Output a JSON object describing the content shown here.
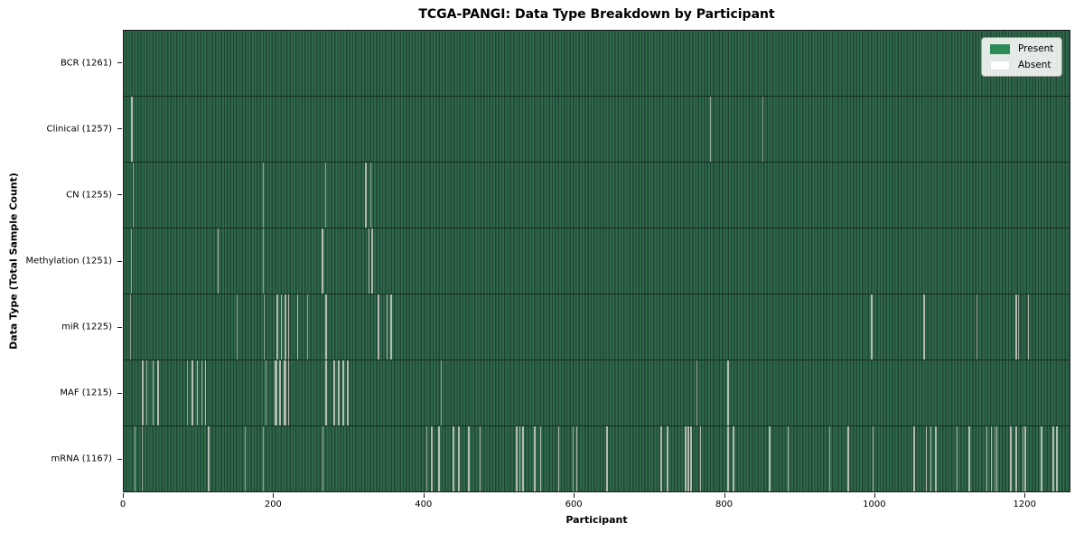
{
  "chart_data": {
    "type": "heatmap",
    "title": "TCGA-PANGI: Data Type Breakdown by Participant",
    "xlabel": "Participant",
    "ylabel": "Data Type (Total Sample Count)",
    "x_ticks": [
      0,
      200,
      400,
      600,
      800,
      1000,
      1200
    ],
    "x_range": [
      0,
      1261
    ],
    "total_participants": 1261,
    "grid": false,
    "legend_position": "upper right",
    "legend": [
      {
        "label": "Present",
        "color": "#2e8b57"
      },
      {
        "label": "Absent",
        "color": "#ffffff"
      }
    ],
    "rows": [
      {
        "data_type": "BCR",
        "label": "BCR (1261)",
        "present_count": 1261,
        "absent_count": 0,
        "absent_runs": []
      },
      {
        "data_type": "Clinical",
        "label": "Clinical (1257)",
        "present_count": 1257,
        "absent_count": 4,
        "absent_runs": [
          [
            10,
            2
          ],
          [
            782,
            1
          ],
          [
            852,
            1
          ]
        ]
      },
      {
        "data_type": "CN",
        "label": "CN (1255)",
        "present_count": 1255,
        "absent_count": 6,
        "absent_runs": [
          [
            12,
            1
          ],
          [
            186,
            1
          ],
          [
            269,
            1
          ],
          [
            322,
            2
          ],
          [
            329,
            1
          ]
        ]
      },
      {
        "data_type": "Methylation",
        "label": "Methylation (1251)",
        "present_count": 1251,
        "absent_count": 10,
        "absent_runs": [
          [
            10,
            1
          ],
          [
            125,
            2
          ],
          [
            186,
            1
          ],
          [
            264,
            2
          ],
          [
            326,
            2
          ],
          [
            330,
            2
          ]
        ]
      },
      {
        "data_type": "miR",
        "label": "miR (1225)",
        "present_count": 1225,
        "absent_count": 36,
        "absent_runs": [
          [
            8,
            1
          ],
          [
            151,
            1
          ],
          [
            187,
            1
          ],
          [
            203,
            3
          ],
          [
            209,
            2
          ],
          [
            214,
            3
          ],
          [
            219,
            2
          ],
          [
            231,
            2
          ],
          [
            245,
            1
          ],
          [
            269,
            2
          ],
          [
            338,
            3
          ],
          [
            350,
            2
          ],
          [
            355,
            3
          ],
          [
            996,
            2
          ],
          [
            1066,
            2
          ],
          [
            1137,
            1
          ],
          [
            1189,
            2
          ],
          [
            1192,
            1
          ],
          [
            1205,
            2
          ]
        ]
      },
      {
        "data_type": "MAF",
        "label": "MAF (1215)",
        "present_count": 1215,
        "absent_count": 46,
        "absent_runs": [
          [
            24,
            2
          ],
          [
            30,
            1
          ],
          [
            38,
            2
          ],
          [
            45,
            2
          ],
          [
            84,
            1
          ],
          [
            90,
            3
          ],
          [
            97,
            2
          ],
          [
            103,
            2
          ],
          [
            108,
            2
          ],
          [
            189,
            1
          ],
          [
            201,
            4
          ],
          [
            207,
            2
          ],
          [
            213,
            4
          ],
          [
            219,
            2
          ],
          [
            269,
            2
          ],
          [
            279,
            3
          ],
          [
            285,
            3
          ],
          [
            292,
            2
          ],
          [
            298,
            2
          ],
          [
            423,
            1
          ],
          [
            764,
            1
          ],
          [
            805,
            2
          ]
        ]
      },
      {
        "data_type": "mRNA",
        "label": "mRNA (1167)",
        "present_count": 1167,
        "absent_count": 94,
        "absent_runs": [
          [
            15,
            1
          ],
          [
            24,
            1
          ],
          [
            112,
            2
          ],
          [
            161,
            1
          ],
          [
            185,
            1
          ],
          [
            265,
            1
          ],
          [
            404,
            1
          ],
          [
            410,
            2
          ],
          [
            419,
            2
          ],
          [
            439,
            2
          ],
          [
            446,
            2
          ],
          [
            459,
            2
          ],
          [
            474,
            2
          ],
          [
            523,
            2
          ],
          [
            527,
            2
          ],
          [
            531,
            2
          ],
          [
            547,
            2
          ],
          [
            555,
            2
          ],
          [
            579,
            2
          ],
          [
            599,
            1
          ],
          [
            603,
            2
          ],
          [
            643,
            2
          ],
          [
            716,
            2
          ],
          [
            724,
            2
          ],
          [
            748,
            2
          ],
          [
            752,
            2
          ],
          [
            755,
            2
          ],
          [
            768,
            2
          ],
          [
            805,
            2
          ],
          [
            812,
            2
          ],
          [
            860,
            2
          ],
          [
            885,
            2
          ],
          [
            941,
            1
          ],
          [
            965,
            2
          ],
          [
            998,
            2
          ],
          [
            1053,
            2
          ],
          [
            1069,
            2
          ],
          [
            1075,
            2
          ],
          [
            1082,
            2
          ],
          [
            1110,
            2
          ],
          [
            1126,
            2
          ],
          [
            1150,
            2
          ],
          [
            1156,
            2
          ],
          [
            1161,
            1
          ],
          [
            1163,
            2
          ],
          [
            1182,
            2
          ],
          [
            1189,
            2
          ],
          [
            1198,
            1
          ],
          [
            1201,
            2
          ],
          [
            1223,
            2
          ],
          [
            1238,
            2
          ],
          [
            1243,
            2
          ]
        ]
      }
    ],
    "colors": {
      "present": "#2e8b57",
      "absent": "#ffffff",
      "stripe_light": "#30694a",
      "stripe_dark": "#1f4634",
      "gap_single": "#93a296",
      "gap_cluster": "#b3bcb2",
      "spine": "#1a1a1a",
      "figure_bg": "#ffffff"
    }
  }
}
